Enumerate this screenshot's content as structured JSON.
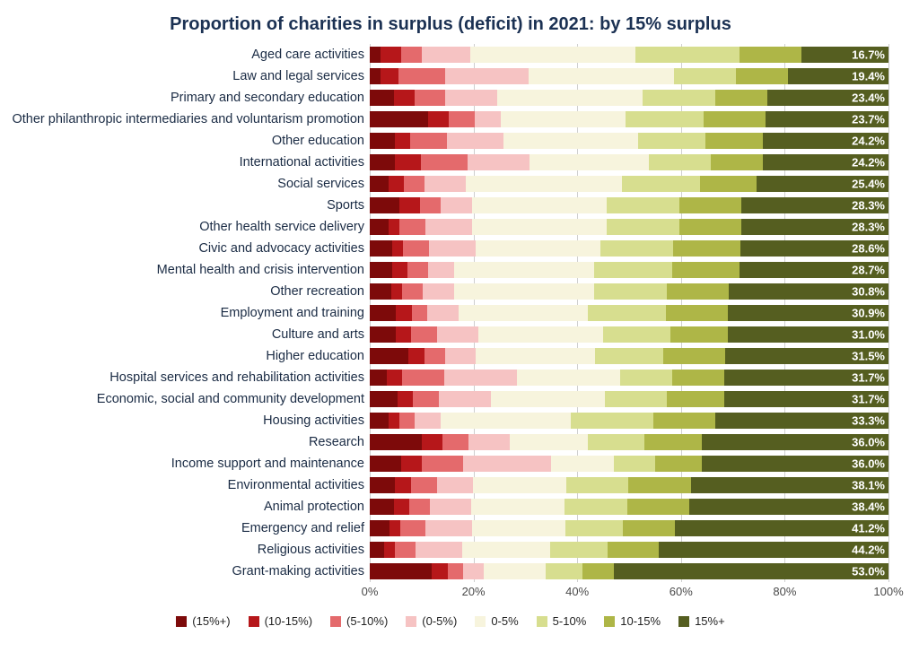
{
  "chart": {
    "type": "stacked-bar-horizontal",
    "title": "Proportion of charities in surplus (deficit) in 2021: by 15% surplus",
    "title_fontsize": 20,
    "title_color": "#1b3153",
    "background_color": "#ffffff",
    "label_fontsize": 14.5,
    "label_color": "#1a2b44",
    "value_label_fontsize": 13,
    "value_label_color": "#ffffff",
    "grid_color": "#cfcfcf",
    "xlim": [
      0,
      100
    ],
    "xtick_step": 20,
    "xtick_labels": [
      "0%",
      "20%",
      "40%",
      "60%",
      "80%",
      "100%"
    ],
    "segment_colors": {
      "deficit_15plus": "#7d0a0a",
      "deficit_10_15": "#b6171a",
      "deficit_5_10": "#e46a6c",
      "deficit_0_5": "#f6c3c3",
      "surplus_0_5": "#f7f4dd",
      "surplus_5_10": "#d7de8f",
      "surplus_10_15": "#aeb647",
      "surplus_15plus": "#555e20"
    },
    "legend": [
      {
        "key": "deficit_15plus",
        "label": "(15%+)"
      },
      {
        "key": "deficit_10_15",
        "label": "(10-15%)"
      },
      {
        "key": "deficit_5_10",
        "label": "(5-10%)"
      },
      {
        "key": "deficit_0_5",
        "label": "(0-5%)"
      },
      {
        "key": "surplus_0_5",
        "label": "0-5%"
      },
      {
        "key": "surplus_5_10",
        "label": "5-10%"
      },
      {
        "key": "surplus_10_15",
        "label": "10-15%"
      },
      {
        "key": "surplus_15plus",
        "label": "15%+"
      }
    ],
    "categories": [
      {
        "label": "Aged care activities",
        "segments": [
          2.0,
          4.0,
          4.0,
          9.3,
          32.0,
          20.0,
          12.0,
          16.7
        ],
        "value_label": "16.7%"
      },
      {
        "label": "Law and legal services",
        "segments": [
          2.0,
          3.6,
          9.0,
          16.0,
          28.0,
          12.0,
          10.0,
          19.4
        ],
        "value_label": "19.4%"
      },
      {
        "label": "Primary and secondary education",
        "segments": [
          4.6,
          4.0,
          6.0,
          10.0,
          28.0,
          14.0,
          10.0,
          23.4
        ],
        "value_label": "23.4%"
      },
      {
        "label": "Other philanthropic intermediaries and voluntarism promotion",
        "segments": [
          11.3,
          4.0,
          5.0,
          5.0,
          24.0,
          15.0,
          12.0,
          23.7
        ],
        "value_label": "23.7%"
      },
      {
        "label": "Other education",
        "segments": [
          4.8,
          3.0,
          7.0,
          11.0,
          26.0,
          13.0,
          11.0,
          24.2
        ],
        "value_label": "24.2%"
      },
      {
        "label": "International activities",
        "segments": [
          4.8,
          5.0,
          9.0,
          12.0,
          23.0,
          12.0,
          10.0,
          24.2
        ],
        "value_label": "24.2%"
      },
      {
        "label": "Social services",
        "segments": [
          3.6,
          3.0,
          4.0,
          8.0,
          30.0,
          15.0,
          11.0,
          25.4
        ],
        "value_label": "25.4%"
      },
      {
        "label": "Sports",
        "segments": [
          5.7,
          4.0,
          4.0,
          6.0,
          26.0,
          14.0,
          12.0,
          28.3
        ],
        "value_label": "28.3%"
      },
      {
        "label": "Other health service delivery",
        "segments": [
          3.7,
          2.0,
          5.0,
          9.0,
          26.0,
          14.0,
          12.0,
          28.3
        ],
        "value_label": "28.3%"
      },
      {
        "label": "Civic and advocacy activities",
        "segments": [
          4.4,
          2.0,
          5.0,
          9.0,
          24.0,
          14.0,
          13.0,
          28.6
        ],
        "value_label": "28.6%"
      },
      {
        "label": "Mental health and crisis intervention",
        "segments": [
          4.3,
          3.0,
          4.0,
          5.0,
          27.0,
          15.0,
          13.0,
          28.7
        ],
        "value_label": "28.7%"
      },
      {
        "label": "Other recreation",
        "segments": [
          4.2,
          2.0,
          4.0,
          6.0,
          27.0,
          14.0,
          12.0,
          30.8
        ],
        "value_label": "30.8%"
      },
      {
        "label": "Employment and training",
        "segments": [
          5.1,
          3.0,
          3.0,
          6.0,
          25.0,
          15.0,
          12.0,
          30.9
        ],
        "value_label": "30.9%"
      },
      {
        "label": "Culture and arts",
        "segments": [
          5.0,
          3.0,
          5.0,
          8.0,
          24.0,
          13.0,
          11.0,
          31.0
        ],
        "value_label": "31.0%"
      },
      {
        "label": "Higher education",
        "segments": [
          7.5,
          3.0,
          4.0,
          6.0,
          23.0,
          13.0,
          12.0,
          31.5
        ],
        "value_label": "31.5%"
      },
      {
        "label": "Hospital services and rehabilitation activities",
        "segments": [
          3.3,
          3.0,
          8.0,
          14.0,
          20.0,
          10.0,
          10.0,
          31.7
        ],
        "value_label": "31.7%"
      },
      {
        "label": "Economic, social and community development",
        "segments": [
          5.3,
          3.0,
          5.0,
          10.0,
          22.0,
          12.0,
          11.0,
          31.7
        ],
        "value_label": "31.7%"
      },
      {
        "label": "Housing activities",
        "segments": [
          3.7,
          2.0,
          3.0,
          5.0,
          25.0,
          16.0,
          12.0,
          33.3
        ],
        "value_label": "33.3%"
      },
      {
        "label": "Research",
        "segments": [
          10.0,
          4.0,
          5.0,
          8.0,
          15.0,
          11.0,
          11.0,
          36.0
        ],
        "value_label": "36.0%"
      },
      {
        "label": "Income support and maintenance",
        "segments": [
          6.0,
          4.0,
          8.0,
          17.0,
          12.0,
          8.0,
          9.0,
          36.0
        ],
        "value_label": "36.0%"
      },
      {
        "label": "Environmental activities",
        "segments": [
          4.9,
          3.0,
          5.0,
          7.0,
          18.0,
          12.0,
          12.0,
          38.1
        ],
        "value_label": "38.1%"
      },
      {
        "label": "Animal protection",
        "segments": [
          4.6,
          3.0,
          4.0,
          8.0,
          18.0,
          12.0,
          12.0,
          38.4
        ],
        "value_label": "38.4%"
      },
      {
        "label": "Emergency and relief",
        "segments": [
          3.8,
          2.0,
          5.0,
          9.0,
          18.0,
          11.0,
          10.0,
          41.2
        ],
        "value_label": "41.2%"
      },
      {
        "label": "Religious activities",
        "segments": [
          2.8,
          2.0,
          4.0,
          9.0,
          17.0,
          11.0,
          10.0,
          44.2
        ],
        "value_label": "44.2%"
      },
      {
        "label": "Grant-making activities",
        "segments": [
          12.0,
          3.0,
          3.0,
          4.0,
          12.0,
          7.0,
          6.0,
          53.0
        ],
        "value_label": "53.0%"
      }
    ],
    "segment_order": [
      "deficit_15plus",
      "deficit_10_15",
      "deficit_5_10",
      "deficit_0_5",
      "surplus_0_5",
      "surplus_5_10",
      "surplus_10_15",
      "surplus_15plus"
    ]
  }
}
